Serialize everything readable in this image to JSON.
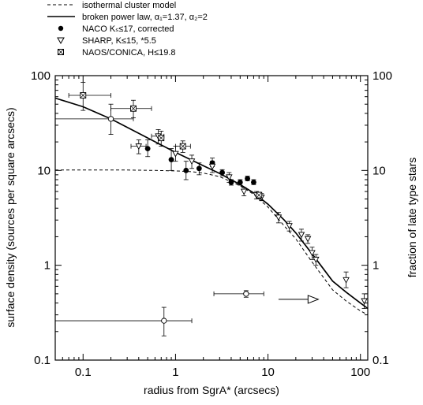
{
  "chart_data": {
    "type": "scatter",
    "xlabel": "radius from SgrA* (arcsecs)",
    "ylabel": "surface density (sources per square arcsecs)",
    "y2label": "fraction of late type stars",
    "xscale": "log",
    "yscale": "log",
    "xlim": [
      0.05,
      120
    ],
    "ylim": [
      0.1,
      100
    ],
    "x_ticks": [
      {
        "v": 0.1,
        "label": "0.1"
      },
      {
        "v": 1,
        "label": "1"
      },
      {
        "v": 10,
        "label": "10"
      },
      {
        "v": 100,
        "label": "100"
      }
    ],
    "y_ticks": [
      {
        "v": 0.1,
        "label": "0.1"
      },
      {
        "v": 1,
        "label": "1"
      },
      {
        "v": 10,
        "label": "10"
      },
      {
        "v": 100,
        "label": "100"
      }
    ],
    "legend_position": "top-left, above plot",
    "legend": [
      {
        "label": "isothermal cluster model",
        "style": "dashed-line"
      },
      {
        "label": "broken power law, α₁=1.37, α₂=2",
        "style": "solid-line"
      },
      {
        "label": "NACO Kₛ≤17, corrected",
        "style": "filled-circle"
      },
      {
        "label": "SHARP, K≤15, *5.5",
        "style": "open-triangle"
      },
      {
        "label": "NAOS/CONICA, H≤19.8",
        "style": "crossed-square"
      }
    ],
    "series": [
      {
        "name": "isothermal cluster model",
        "style": "dashed",
        "x": [
          0.05,
          0.3,
          0.6,
          1.0,
          1.5,
          2.0,
          3.0,
          5.0,
          7.0,
          10,
          15,
          20,
          30,
          50,
          70,
          100,
          120
        ],
        "y": [
          10.1,
          10.1,
          10.0,
          9.9,
          9.7,
          9.4,
          8.6,
          6.9,
          5.6,
          4.1,
          2.6,
          1.9,
          1.08,
          0.55,
          0.42,
          0.33,
          0.3
        ]
      },
      {
        "name": "broken power law, α₁=1.37, α₂=2",
        "style": "solid",
        "x": [
          0.05,
          0.1,
          0.2,
          0.5,
          1.0,
          2.0,
          3.0,
          5.0,
          7.0,
          10,
          15,
          20,
          30,
          50,
          70,
          100,
          120
        ],
        "y": [
          58,
          47,
          35,
          22,
          15.5,
          11.2,
          9.3,
          7.1,
          5.8,
          4.4,
          3.0,
          2.2,
          1.32,
          0.68,
          0.52,
          0.4,
          0.35
        ]
      },
      {
        "name": "NACO Kₛ≤17, corrected",
        "marker": "filled-circle",
        "points": [
          {
            "x": 0.2,
            "y": 35,
            "ylo": 24,
            "yhi": 50
          },
          {
            "x": 0.5,
            "y": 17,
            "ylo": 14,
            "yhi": 21
          },
          {
            "x": 0.9,
            "y": 13,
            "ylo": 10,
            "yhi": 17
          },
          {
            "x": 1.3,
            "y": 10,
            "ylo": 8,
            "yhi": 12.5
          },
          {
            "x": 1.8,
            "y": 10.5,
            "ylo": 9,
            "yhi": 12
          },
          {
            "x": 2.5,
            "y": 12,
            "ylo": 11,
            "yhi": 13.5
          },
          {
            "x": 3.2,
            "y": 9.5,
            "ylo": 8.8,
            "yhi": 10.2
          },
          {
            "x": 4.0,
            "y": 7.5,
            "ylo": 7,
            "yhi": 8
          },
          {
            "x": 5.0,
            "y": 7.5,
            "ylo": 7,
            "yhi": 8
          },
          {
            "x": 6.0,
            "y": 8.2,
            "ylo": 7.8,
            "yhi": 8.7
          },
          {
            "x": 7.0,
            "y": 7.5,
            "ylo": 7.1,
            "yhi": 8
          }
        ]
      },
      {
        "name": "SHARP, K≤15, *5.5",
        "marker": "open-triangle",
        "points": [
          {
            "x": 0.4,
            "y": 18,
            "ylo": 15,
            "yhi": 21,
            "xlo": 0.33,
            "xhi": 0.48
          },
          {
            "x": 0.65,
            "y": 23,
            "ylo": 19,
            "yhi": 27,
            "xlo": 0.55,
            "xhi": 0.75
          },
          {
            "x": 1.0,
            "y": 15,
            "ylo": 12.5,
            "yhi": 18
          },
          {
            "x": 1.5,
            "y": 12.5,
            "ylo": 10.5,
            "yhi": 14.5
          },
          {
            "x": 2.5,
            "y": 11,
            "ylo": 9.5,
            "yhi": 12.5
          },
          {
            "x": 3.8,
            "y": 8.5,
            "ylo": 7.5,
            "yhi": 9.5
          },
          {
            "x": 5.5,
            "y": 6.0,
            "ylo": 5.4,
            "yhi": 6.6
          },
          {
            "x": 7.5,
            "y": 5.5,
            "ylo": 5.0,
            "yhi": 6.0
          },
          {
            "x": 8.5,
            "y": 5.2,
            "ylo": 4.8,
            "yhi": 5.7
          },
          {
            "x": 13,
            "y": 3.2,
            "ylo": 2.8,
            "yhi": 3.6
          },
          {
            "x": 17,
            "y": 2.6,
            "ylo": 2.3,
            "yhi": 2.9
          },
          {
            "x": 23,
            "y": 2.1,
            "ylo": 1.8,
            "yhi": 2.4
          },
          {
            "x": 27,
            "y": 1.9,
            "ylo": 1.7,
            "yhi": 2.1
          },
          {
            "x": 30,
            "y": 1.35,
            "ylo": 1.15,
            "yhi": 1.55
          },
          {
            "x": 33,
            "y": 1.15,
            "ylo": 1.0,
            "yhi": 1.3
          },
          {
            "x": 70,
            "y": 0.7,
            "ylo": 0.58,
            "yhi": 0.85
          },
          {
            "x": 110,
            "y": 0.42,
            "ylo": 0.35,
            "yhi": 0.5
          }
        ]
      },
      {
        "name": "NAOS/CONICA, H≤19.8",
        "marker": "crossed-square",
        "points": [
          {
            "x": 0.1,
            "y": 62,
            "ylo": 43,
            "yhi": 85,
            "xlo": 0.07,
            "xhi": 0.2
          },
          {
            "x": 0.35,
            "y": 45,
            "ylo": 36,
            "yhi": 55,
            "xlo": 0.2,
            "xhi": 0.55
          },
          {
            "x": 0.7,
            "y": 22,
            "ylo": 18,
            "yhi": 26
          },
          {
            "x": 1.2,
            "y": 18,
            "ylo": 15.5,
            "yhi": 20.5,
            "xlo": 1.0,
            "xhi": 1.45
          },
          {
            "x": 8.0,
            "y": 5.5,
            "ylo": 5.1,
            "yhi": 5.9
          }
        ]
      },
      {
        "name": "fraction of late type stars",
        "marker": "open-circle",
        "axis": "right",
        "points": [
          {
            "x": 0.2,
            "y": 35,
            "xlo": 0.05,
            "xhi": 0.35
          },
          {
            "x": 0.75,
            "y": 0.26,
            "ylo": 0.18,
            "yhi": 0.36,
            "xlo": 0.05,
            "xhi": 1.5
          },
          {
            "x": 5.8,
            "y": 0.5,
            "ylo": 0.46,
            "yhi": 0.54,
            "xlo": 2.6,
            "xhi": 9.0
          }
        ]
      }
    ],
    "annotations": [
      {
        "type": "arrow",
        "direction": "right",
        "x_from": 13,
        "x_to": 35,
        "y": 0.55
      }
    ]
  }
}
